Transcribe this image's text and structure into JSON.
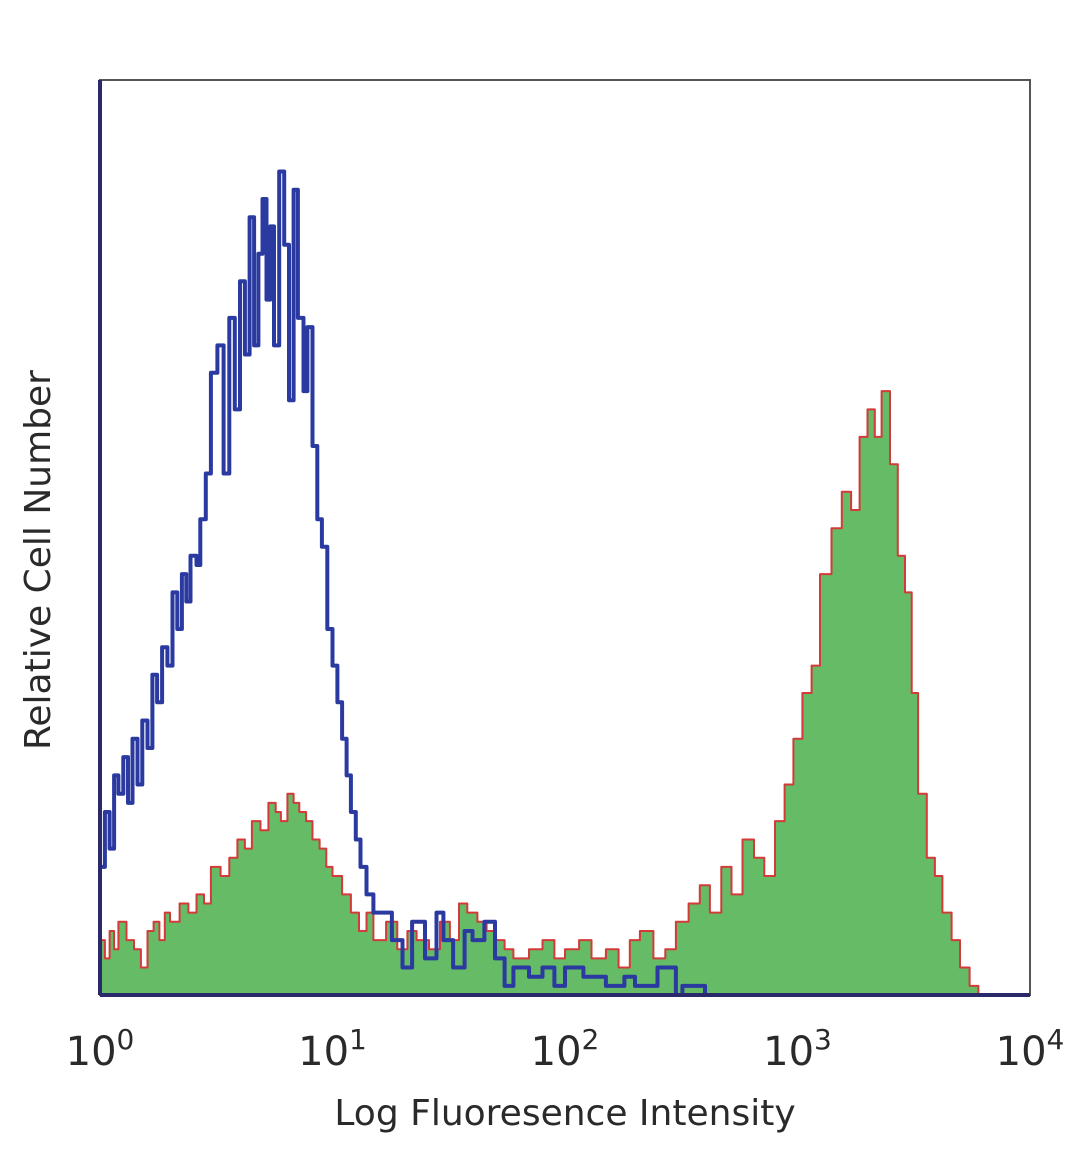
{
  "chart_data": {
    "type": "area",
    "title": "",
    "xlabel": "Log Fluoresence Intensity",
    "ylabel": "Relative Cell Number",
    "x_scale": "log",
    "xlim": [
      1,
      10000
    ],
    "ylim": [
      0,
      100
    ],
    "grid": false,
    "legend": "none",
    "xticks": [
      {
        "value": 1,
        "base": "10",
        "exp": "0"
      },
      {
        "value": 10,
        "base": "10",
        "exp": "1"
      },
      {
        "value": 100,
        "base": "10",
        "exp": "2"
      },
      {
        "value": 1000,
        "base": "10",
        "exp": "3"
      },
      {
        "value": 10000,
        "base": "10",
        "exp": "4"
      }
    ],
    "colors": {
      "control_line": "#2b3aa0",
      "sample_fill": "#66bb66",
      "sample_line": "#d33a3a",
      "axes": "#2a2a6a",
      "frame": "#555555"
    },
    "series": [
      {
        "style": "outline",
        "color": "#2b3aa0",
        "x": [
          1.0,
          1.05,
          1.1,
          1.15,
          1.2,
          1.26,
          1.32,
          1.38,
          1.45,
          1.52,
          1.6,
          1.68,
          1.76,
          1.85,
          1.95,
          2.05,
          2.15,
          2.25,
          2.35,
          2.45,
          2.6,
          2.7,
          2.85,
          3.0,
          3.2,
          3.4,
          3.6,
          3.8,
          4.0,
          4.2,
          4.4,
          4.6,
          4.8,
          5.0,
          5.2,
          5.4,
          5.6,
          5.9,
          6.2,
          6.5,
          6.8,
          7.1,
          7.5,
          7.8,
          8.2,
          8.6,
          9.0,
          9.5,
          10.0,
          10.5,
          11.0,
          11.5,
          12.0,
          12.6,
          13.2,
          14.0,
          15.0,
          16.0,
          18.0,
          20.0,
          22.0,
          25.0,
          28.0,
          30.0,
          33.0,
          37.0,
          40.0,
          45.0,
          50.0,
          55.0,
          60.0,
          70.0,
          80.0,
          90.0,
          100.0,
          120.0,
          150.0,
          180.0,
          200.0,
          250.0,
          300.0,
          320.0,
          400.0,
          600.0,
          1000.0,
          3000.0,
          10000.0
        ],
        "values": [
          14,
          20,
          16,
          24,
          22,
          26,
          21,
          28,
          23,
          30,
          27,
          35,
          32,
          38,
          36,
          44,
          40,
          46,
          43,
          48,
          47,
          52,
          57,
          68,
          71,
          57,
          74,
          64,
          78,
          70,
          85,
          71,
          81,
          87,
          76,
          84,
          71,
          90,
          82,
          65,
          88,
          74,
          66,
          73,
          60,
          52,
          49,
          40,
          36,
          32,
          28,
          24,
          20,
          17,
          14,
          11,
          9,
          9,
          6,
          3,
          8,
          4,
          9,
          6,
          3,
          7,
          6,
          8,
          4,
          1,
          3,
          2,
          3,
          1,
          3,
          2,
          1,
          2,
          1,
          3,
          0,
          1,
          0,
          0,
          0,
          0,
          0
        ]
      },
      {
        "style": "filled",
        "color": "#d33a3a",
        "fill": "#66bb66",
        "x": [
          1.0,
          1.05,
          1.1,
          1.15,
          1.2,
          1.3,
          1.4,
          1.5,
          1.6,
          1.7,
          1.8,
          1.9,
          2.0,
          2.2,
          2.4,
          2.6,
          2.8,
          3.0,
          3.3,
          3.6,
          3.9,
          4.2,
          4.5,
          4.9,
          5.3,
          5.7,
          6.0,
          6.4,
          6.8,
          7.2,
          7.7,
          8.2,
          8.8,
          9.4,
          10.0,
          11.0,
          12.0,
          13.0,
          14.0,
          15.0,
          17.0,
          19.0,
          21.0,
          23.0,
          26.0,
          29.0,
          32.0,
          35.0,
          38.0,
          42.0,
          46.0,
          50.0,
          55.0,
          60.0,
          70.0,
          80.0,
          90.0,
          100.0,
          115.0,
          130.0,
          150.0,
          170.0,
          190.0,
          210.0,
          240.0,
          270.0,
          300.0,
          340.0,
          380.0,
          420.0,
          470.0,
          520.0,
          580.0,
          650.0,
          720.0,
          800.0,
          880.0,
          960.0,
          1050.0,
          1150.0,
          1250.0,
          1400.0,
          1550.0,
          1700.0,
          1850.0,
          2000.0,
          2150.0,
          2300.0,
          2500.0,
          2700.0,
          2900.0,
          3100.0,
          3300.0,
          3600.0,
          3900.0,
          4200.0,
          4600.0,
          5000.0,
          5500.0,
          6000.0,
          7000.0,
          8000.0,
          10000.0
        ],
        "values": [
          6,
          4,
          7,
          5,
          8,
          6,
          5,
          3,
          7,
          8,
          6,
          9,
          8,
          10,
          9,
          11,
          10,
          14,
          13,
          15,
          17,
          16,
          19,
          18,
          21,
          20,
          19,
          22,
          21,
          20,
          19,
          17,
          16,
          14,
          13,
          11,
          9,
          7,
          9,
          6,
          8,
          5,
          7,
          6,
          5,
          8,
          6,
          10,
          9,
          8,
          7,
          6,
          5,
          4,
          5,
          6,
          4,
          5,
          6,
          4,
          5,
          3,
          6,
          7,
          4,
          5,
          8,
          10,
          12,
          9,
          14,
          11,
          17,
          15,
          13,
          19,
          23,
          28,
          33,
          36,
          46,
          51,
          55,
          53,
          61,
          64,
          61,
          66,
          58,
          48,
          44,
          33,
          22,
          15,
          13,
          9,
          6,
          3,
          1,
          0,
          0,
          0,
          0
        ]
      }
    ]
  }
}
